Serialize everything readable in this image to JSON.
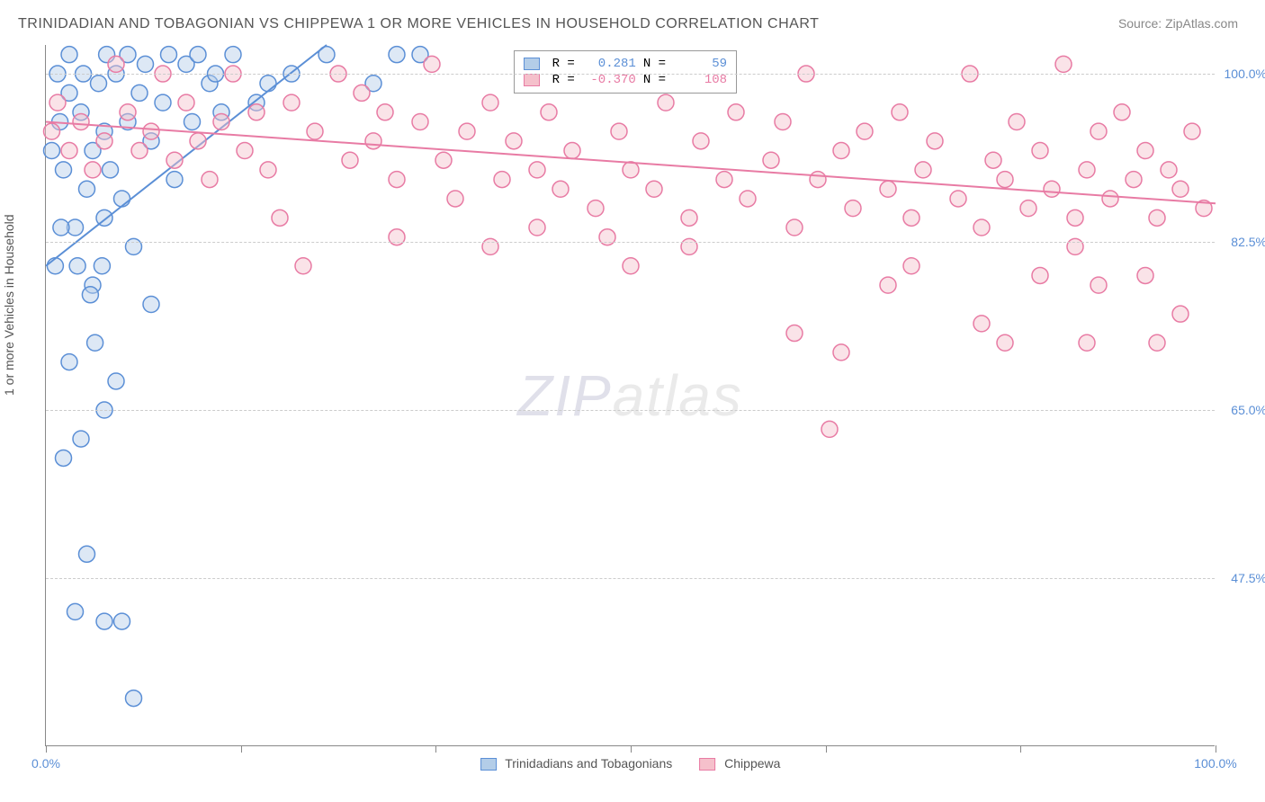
{
  "title": "TRINIDADIAN AND TOBAGONIAN VS CHIPPEWA 1 OR MORE VEHICLES IN HOUSEHOLD CORRELATION CHART",
  "source": "Source: ZipAtlas.com",
  "ylabel": "1 or more Vehicles in Household",
  "watermark": "ZIPatlas",
  "chart": {
    "type": "scatter",
    "xlim": [
      0,
      100
    ],
    "ylim": [
      30,
      103
    ],
    "ytick_labels": [
      "47.5%",
      "65.0%",
      "82.5%",
      "100.0%"
    ],
    "ytick_values": [
      47.5,
      65.0,
      82.5,
      100.0
    ],
    "xtick_positions": [
      0,
      16.67,
      33.33,
      50,
      66.67,
      83.33,
      100
    ],
    "xtick_labels": {
      "0": "0.0%",
      "100": "100.0%"
    },
    "grid_color": "#cccccc",
    "axis_color": "#888888",
    "background_color": "#ffffff",
    "marker_radius": 9,
    "marker_opacity": 0.45
  },
  "series": [
    {
      "name": "Trinidadians and Tobagonians",
      "color_fill": "#b3cde8",
      "color_stroke": "#5b8fd6",
      "R": "0.281",
      "N": "59",
      "trend": {
        "x1": 0,
        "y1": 80,
        "x2": 24,
        "y2": 103
      },
      "points": [
        [
          0.5,
          92
        ],
        [
          1,
          100
        ],
        [
          1.2,
          95
        ],
        [
          1.5,
          90
        ],
        [
          2,
          102
        ],
        [
          2,
          98
        ],
        [
          2.5,
          84
        ],
        [
          3,
          96
        ],
        [
          3.2,
          100
        ],
        [
          3.5,
          88
        ],
        [
          4,
          92
        ],
        [
          4,
          78
        ],
        [
          4.2,
          72
        ],
        [
          4.5,
          99
        ],
        [
          5,
          94
        ],
        [
          5,
          85
        ],
        [
          5.2,
          102
        ],
        [
          5.5,
          90
        ],
        [
          6,
          100
        ],
        [
          6.5,
          87
        ],
        [
          7,
          95
        ],
        [
          7,
          102
        ],
        [
          7.5,
          82
        ],
        [
          8,
          98
        ],
        [
          8.5,
          101
        ],
        [
          9,
          93
        ],
        [
          9,
          76
        ],
        [
          10,
          97
        ],
        [
          10.5,
          102
        ],
        [
          11,
          89
        ],
        [
          12,
          101
        ],
        [
          12.5,
          95
        ],
        [
          13,
          102
        ],
        [
          14,
          99
        ],
        [
          14.5,
          100
        ],
        [
          15,
          96
        ],
        [
          16,
          102
        ],
        [
          18,
          97
        ],
        [
          19,
          99
        ],
        [
          21,
          100
        ],
        [
          24,
          102
        ],
        [
          28,
          99
        ],
        [
          30,
          102
        ],
        [
          32,
          102
        ],
        [
          2,
          70
        ],
        [
          3,
          62
        ],
        [
          1.5,
          60
        ],
        [
          3.5,
          50
        ],
        [
          5,
          65
        ],
        [
          6,
          68
        ],
        [
          2.5,
          44
        ],
        [
          5,
          43
        ],
        [
          6.5,
          43
        ],
        [
          7.5,
          35
        ],
        [
          0.8,
          80
        ],
        [
          1.3,
          84
        ],
        [
          2.7,
          80
        ],
        [
          3.8,
          77
        ],
        [
          4.8,
          80
        ]
      ]
    },
    {
      "name": "Chippewa",
      "color_fill": "#f5c0cb",
      "color_stroke": "#e87ba4",
      "R": "-0.370",
      "N": "108",
      "trend": {
        "x1": 0,
        "y1": 95,
        "x2": 100,
        "y2": 86.5
      },
      "points": [
        [
          0.5,
          94
        ],
        [
          1,
          97
        ],
        [
          2,
          92
        ],
        [
          3,
          95
        ],
        [
          4,
          90
        ],
        [
          5,
          93
        ],
        [
          6,
          101
        ],
        [
          7,
          96
        ],
        [
          8,
          92
        ],
        [
          9,
          94
        ],
        [
          10,
          100
        ],
        [
          11,
          91
        ],
        [
          12,
          97
        ],
        [
          13,
          93
        ],
        [
          14,
          89
        ],
        [
          15,
          95
        ],
        [
          16,
          100
        ],
        [
          17,
          92
        ],
        [
          18,
          96
        ],
        [
          19,
          90
        ],
        [
          20,
          85
        ],
        [
          21,
          97
        ],
        [
          22,
          80
        ],
        [
          23,
          94
        ],
        [
          25,
          100
        ],
        [
          26,
          91
        ],
        [
          27,
          98
        ],
        [
          28,
          93
        ],
        [
          29,
          96
        ],
        [
          30,
          89
        ],
        [
          32,
          95
        ],
        [
          33,
          101
        ],
        [
          34,
          91
        ],
        [
          35,
          87
        ],
        [
          36,
          94
        ],
        [
          38,
          97
        ],
        [
          39,
          89
        ],
        [
          40,
          93
        ],
        [
          42,
          90
        ],
        [
          43,
          96
        ],
        [
          44,
          88
        ],
        [
          45,
          92
        ],
        [
          47,
          86
        ],
        [
          48,
          101
        ],
        [
          49,
          94
        ],
        [
          50,
          90
        ],
        [
          52,
          88
        ],
        [
          53,
          97
        ],
        [
          55,
          85
        ],
        [
          56,
          93
        ],
        [
          58,
          89
        ],
        [
          59,
          96
        ],
        [
          60,
          87
        ],
        [
          62,
          91
        ],
        [
          63,
          95
        ],
        [
          64,
          84
        ],
        [
          65,
          100
        ],
        [
          66,
          89
        ],
        [
          68,
          92
        ],
        [
          69,
          86
        ],
        [
          70,
          94
        ],
        [
          72,
          88
        ],
        [
          73,
          96
        ],
        [
          74,
          85
        ],
        [
          75,
          90
        ],
        [
          76,
          93
        ],
        [
          78,
          87
        ],
        [
          79,
          100
        ],
        [
          80,
          84
        ],
        [
          81,
          91
        ],
        [
          82,
          89
        ],
        [
          83,
          95
        ],
        [
          84,
          86
        ],
        [
          85,
          92
        ],
        [
          86,
          88
        ],
        [
          87,
          101
        ],
        [
          88,
          85
        ],
        [
          89,
          90
        ],
        [
          90,
          94
        ],
        [
          91,
          87
        ],
        [
          92,
          96
        ],
        [
          93,
          89
        ],
        [
          94,
          92
        ],
        [
          95,
          85
        ],
        [
          96,
          90
        ],
        [
          97,
          88
        ],
        [
          98,
          94
        ],
        [
          99,
          86
        ],
        [
          64,
          73
        ],
        [
          67,
          63
        ],
        [
          68,
          71
        ],
        [
          80,
          74
        ],
        [
          82,
          72
        ],
        [
          74,
          80
        ],
        [
          85,
          79
        ],
        [
          90,
          78
        ],
        [
          94,
          79
        ],
        [
          88,
          82
        ],
        [
          55,
          82
        ],
        [
          48,
          83
        ],
        [
          38,
          82
        ],
        [
          42,
          84
        ],
        [
          30,
          83
        ],
        [
          89,
          72
        ],
        [
          95,
          72
        ],
        [
          97,
          75
        ],
        [
          72,
          78
        ],
        [
          50,
          80
        ]
      ]
    }
  ]
}
